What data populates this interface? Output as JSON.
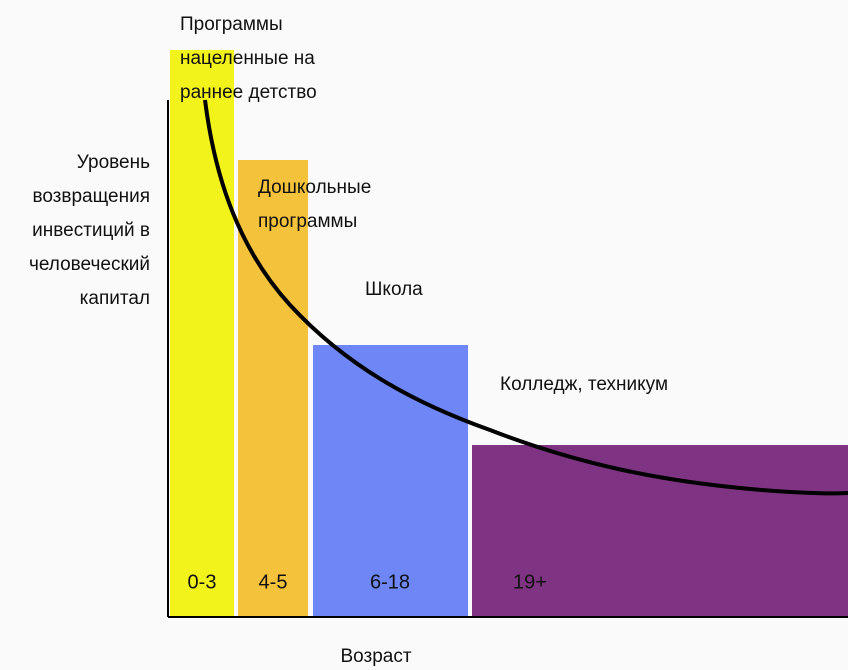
{
  "y_axis_label": [
    "Уровень",
    "возвращения",
    "инвестиций в",
    "человеческий",
    "капитал"
  ],
  "x_axis_label": "Возраст",
  "stages": [
    {
      "caption": [
        "Программы",
        "нацеленные на",
        "раннее детство"
      ],
      "age": "0-3"
    },
    {
      "caption": [
        "Дошкольные",
        "программы"
      ],
      "age": "4-5"
    },
    {
      "caption": [
        "Школа"
      ],
      "age": "6-18"
    },
    {
      "caption": [
        "Колледж, техникум"
      ],
      "age": "19+"
    }
  ]
}
